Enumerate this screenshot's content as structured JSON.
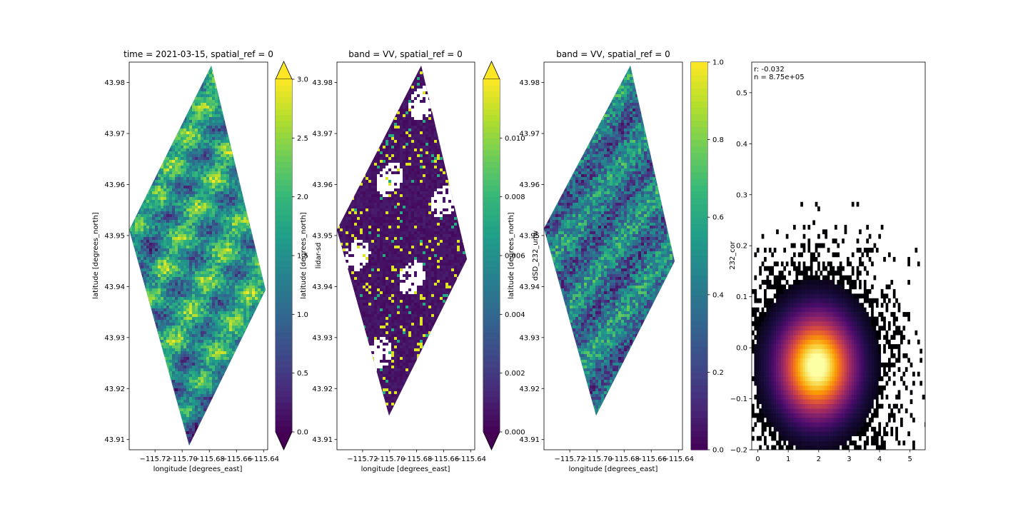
{
  "colors": {
    "viridis": [
      "#440154",
      "#482878",
      "#3e4a89",
      "#31688e",
      "#26828e",
      "#1f9e89",
      "#35b779",
      "#6dcd59",
      "#b4de2c",
      "#fde725"
    ],
    "inferno": [
      "#000004",
      "#1b0c41",
      "#4a0c6b",
      "#781c6d",
      "#a52c60",
      "#cf4446",
      "#ed6925",
      "#fb9b06",
      "#f7d13d",
      "#fcffa4"
    ]
  },
  "chart_data": [
    {
      "type": "heatmap",
      "title": "time = 2021-03-15, spatial_ref = 0",
      "xlabel": "longitude [degrees_east]",
      "ylabel": "latitude [degrees_north]",
      "xticks": [
        "−115.72",
        "−115.70",
        "−115.68",
        "−115.66",
        "−115.64"
      ],
      "yticks": [
        "43.91",
        "43.92",
        "43.93",
        "43.94",
        "43.95",
        "43.96",
        "43.97",
        "43.98"
      ],
      "extent": {
        "lon": [
          -115.739,
          -115.637
        ],
        "lat": [
          43.908,
          43.984
        ]
      },
      "colormap": "viridis",
      "colorbar": {
        "label": "lidar-sd",
        "range": [
          0.0,
          3.0
        ],
        "ticks": [
          "0.0",
          "0.5",
          "1.0",
          "1.5",
          "2.0",
          "2.5",
          "3.0"
        ],
        "extend": "both"
      }
    },
    {
      "type": "heatmap",
      "title": "band = VV, spatial_ref = 0",
      "xlabel": "longitude [degrees_east]",
      "ylabel": "latitude [degrees_north]",
      "xticks": [
        "−115.72",
        "−115.70",
        "−115.68",
        "−115.66",
        "−115.64"
      ],
      "yticks": [
        "43.91",
        "43.92",
        "43.93",
        "43.94",
        "43.95",
        "43.96",
        "43.97",
        "43.98"
      ],
      "extent": {
        "lon": [
          -115.739,
          -115.637
        ],
        "lat": [
          43.908,
          43.984
        ]
      },
      "colormap": "viridis",
      "colorbar": {
        "label": "dSD_232_unw",
        "range": [
          0.0,
          0.012
        ],
        "ticks": [
          "0.000",
          "0.002",
          "0.004",
          "0.006",
          "0.008",
          "0.010"
        ],
        "extend": "both"
      }
    },
    {
      "type": "heatmap",
      "title": "band = VV, spatial_ref = 0",
      "xlabel": "longitude [degrees_east]",
      "ylabel": "latitude [degrees_north]",
      "xticks": [
        "−115.72",
        "−115.70",
        "−115.68",
        "−115.66",
        "−115.64"
      ],
      "yticks": [
        "43.91",
        "43.92",
        "43.93",
        "43.94",
        "43.95",
        "43.96",
        "43.97",
        "43.98"
      ],
      "extent": {
        "lon": [
          -115.739,
          -115.637
        ],
        "lat": [
          43.908,
          43.984
        ]
      },
      "colormap": "viridis",
      "colorbar": {
        "label": "232_cor",
        "range": [
          0.0,
          1.0
        ],
        "ticks": [
          "0.0",
          "0.2",
          "0.4",
          "0.6",
          "0.8",
          "1.0"
        ],
        "extend": "neither"
      }
    },
    {
      "type": "heatmap",
      "subtype": "2d-histogram",
      "colormap": "inferno",
      "xlim": [
        -0.2,
        5.5
      ],
      "ylim": [
        -0.2,
        0.56
      ],
      "xticks": [
        "0",
        "1",
        "2",
        "3",
        "4",
        "5"
      ],
      "yticks": [
        "−0.2",
        "−0.1",
        "0.0",
        "0.1",
        "0.2",
        "0.3",
        "0.4",
        "0.5"
      ],
      "annotation": {
        "r": "r: -0.032",
        "n": "n = 8.75e+05"
      },
      "density_center": {
        "x": 1.9,
        "y": -0.04
      }
    }
  ]
}
